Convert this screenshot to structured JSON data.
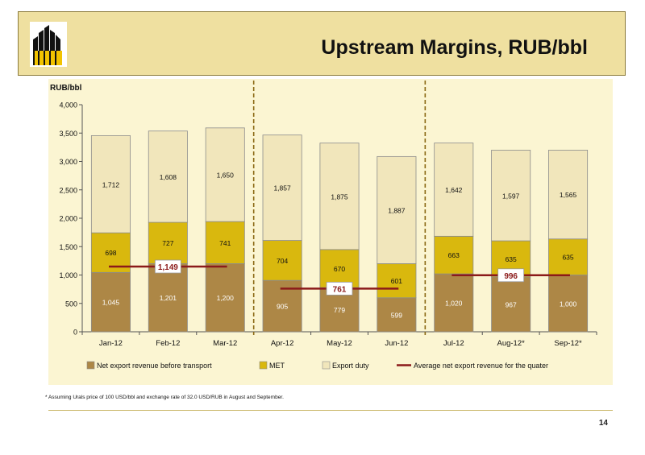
{
  "slide": {
    "title": "Upstream Margins, RUB/bbl",
    "footnote": "* Assuming Urals price of 100 USD/bbl and exchange rate of 32.0 USD/RUB in August and September.",
    "page_number": "14"
  },
  "colors": {
    "header_bg": "#efe0a0",
    "chart_bg": "#fbf5d2",
    "net_export": "#ad8746",
    "met": "#d9b80e",
    "export_duty": "#f1e6bb",
    "average_line": "#8b1a1a",
    "quarter_divider": "#8b6914"
  },
  "chart_data": {
    "type": "bar",
    "stacked": true,
    "y_unit_label": "RUB/bbl",
    "ylim": [
      0,
      4000
    ],
    "yticks": [
      0,
      500,
      1000,
      1500,
      2000,
      2500,
      3000,
      3500,
      4000
    ],
    "ytick_labels": [
      "0",
      "500",
      "1,000",
      "1,500",
      "2,000",
      "2,500",
      "3,000",
      "3,500",
      "4,000"
    ],
    "categories": [
      "Jan-12",
      "Feb-12",
      "Mar-12",
      "Apr-12",
      "May-12",
      "Jun-12",
      "Jul-12",
      "Aug-12*",
      "Sep-12*"
    ],
    "series": [
      {
        "name": "Net export revenue before transport",
        "color_key": "net_export",
        "values": [
          1045,
          1201,
          1200,
          905,
          779,
          599,
          1020,
          967,
          1000
        ],
        "labels": [
          "1,045",
          "1,201",
          "1,200",
          "905",
          "779",
          "599",
          "1,020",
          "967",
          "1,000"
        ]
      },
      {
        "name": "MET",
        "color_key": "met",
        "values": [
          698,
          727,
          741,
          704,
          670,
          601,
          663,
          635,
          635
        ],
        "labels": [
          "698",
          "727",
          "741",
          "704",
          "670",
          "601",
          "663",
          "635",
          "635"
        ]
      },
      {
        "name": "Export duty",
        "color_key": "export_duty",
        "values": [
          1712,
          1608,
          1650,
          1857,
          1875,
          1887,
          1642,
          1597,
          1565
        ],
        "labels": [
          "1,712",
          "1,608",
          "1,650",
          "1,857",
          "1,875",
          "1,887",
          "1,642",
          "1,597",
          "1,565"
        ]
      }
    ],
    "average_line": {
      "name": "Average net export revenue for the quater",
      "quarters": [
        {
          "start_index": 0,
          "end_index": 2,
          "value": 1149,
          "label": "1,149"
        },
        {
          "start_index": 3,
          "end_index": 5,
          "value": 761,
          "label": "761"
        },
        {
          "start_index": 6,
          "end_index": 8,
          "value": 996,
          "label": "996"
        }
      ]
    },
    "quarter_dividers_after_index": [
      2,
      5
    ],
    "legend_position": "bottom",
    "grid": false
  }
}
